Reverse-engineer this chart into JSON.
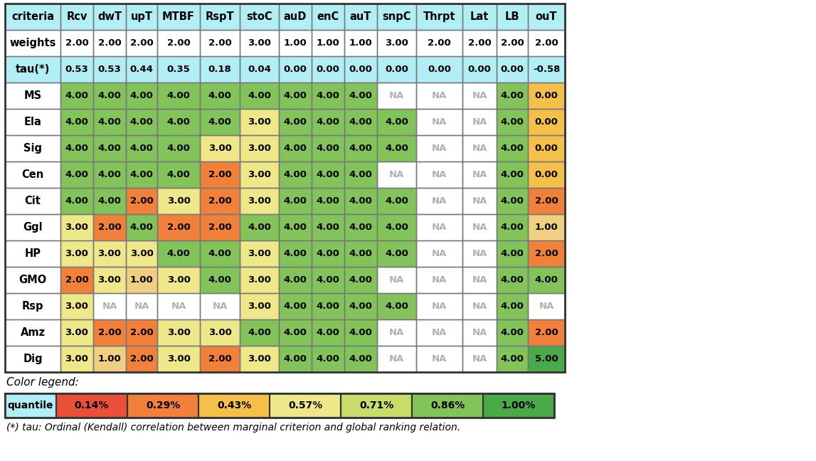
{
  "col_headers": [
    "criteria",
    "Rcv",
    "dwT",
    "upT",
    "MTBF",
    "RspT",
    "stoC",
    "auD",
    "enC",
    "auT",
    "snpC",
    "Thrpt",
    "Lat",
    "LB",
    "ouT"
  ],
  "row_headers": [
    "weights",
    "tau(*)",
    "MS",
    "Ela",
    "Sig",
    "Cen",
    "Cit",
    "Ggl",
    "HP",
    "GMO",
    "Rsp",
    "Amz",
    "Dig"
  ],
  "table_data": [
    [
      "2.00",
      "2.00",
      "2.00",
      "2.00",
      "2.00",
      "3.00",
      "1.00",
      "1.00",
      "1.00",
      "3.00",
      "2.00",
      "2.00",
      "2.00",
      "2.00"
    ],
    [
      "0.53",
      "0.53",
      "0.44",
      "0.35",
      "0.18",
      "0.04",
      "0.00",
      "0.00",
      "0.00",
      "0.00",
      "0.00",
      "0.00",
      "0.00",
      "-0.58"
    ],
    [
      "4.00",
      "4.00",
      "4.00",
      "4.00",
      "4.00",
      "4.00",
      "4.00",
      "4.00",
      "4.00",
      "NA",
      "NA",
      "NA",
      "4.00",
      "0.00"
    ],
    [
      "4.00",
      "4.00",
      "4.00",
      "4.00",
      "4.00",
      "3.00",
      "4.00",
      "4.00",
      "4.00",
      "4.00",
      "NA",
      "NA",
      "4.00",
      "0.00"
    ],
    [
      "4.00",
      "4.00",
      "4.00",
      "4.00",
      "3.00",
      "3.00",
      "4.00",
      "4.00",
      "4.00",
      "4.00",
      "NA",
      "NA",
      "4.00",
      "0.00"
    ],
    [
      "4.00",
      "4.00",
      "4.00",
      "4.00",
      "2.00",
      "3.00",
      "4.00",
      "4.00",
      "4.00",
      "NA",
      "NA",
      "NA",
      "4.00",
      "0.00"
    ],
    [
      "4.00",
      "4.00",
      "2.00",
      "3.00",
      "2.00",
      "3.00",
      "4.00",
      "4.00",
      "4.00",
      "4.00",
      "NA",
      "NA",
      "4.00",
      "2.00"
    ],
    [
      "3.00",
      "2.00",
      "4.00",
      "2.00",
      "2.00",
      "4.00",
      "4.00",
      "4.00",
      "4.00",
      "4.00",
      "NA",
      "NA",
      "4.00",
      "1.00"
    ],
    [
      "3.00",
      "3.00",
      "3.00",
      "4.00",
      "4.00",
      "3.00",
      "4.00",
      "4.00",
      "4.00",
      "4.00",
      "NA",
      "NA",
      "4.00",
      "2.00"
    ],
    [
      "2.00",
      "3.00",
      "1.00",
      "3.00",
      "4.00",
      "3.00",
      "4.00",
      "4.00",
      "4.00",
      "NA",
      "NA",
      "NA",
      "4.00",
      "4.00"
    ],
    [
      "3.00",
      "NA",
      "NA",
      "NA",
      "NA",
      "3.00",
      "4.00",
      "4.00",
      "4.00",
      "4.00",
      "NA",
      "NA",
      "4.00",
      "NA"
    ],
    [
      "3.00",
      "2.00",
      "2.00",
      "3.00",
      "3.00",
      "4.00",
      "4.00",
      "4.00",
      "4.00",
      "NA",
      "NA",
      "NA",
      "4.00",
      "2.00"
    ],
    [
      "3.00",
      "1.00",
      "2.00",
      "3.00",
      "2.00",
      "3.00",
      "4.00",
      "4.00",
      "4.00",
      "NA",
      "NA",
      "NA",
      "4.00",
      "5.00"
    ]
  ],
  "value_color_map": {
    "0.00": "#f5c04a",
    "1.00": "#f0d080",
    "2.00": "#f0803a",
    "3.00": "#eee88a",
    "4.00": "#82c45a",
    "5.00": "#4aaa4a"
  },
  "quantile_colors": [
    "#e8503a",
    "#f0803a",
    "#f5c04a",
    "#eee88a",
    "#c8dc6a",
    "#82c45a",
    "#4aaa4a"
  ],
  "quantile_labels": [
    "0.14%",
    "0.29%",
    "0.43%",
    "0.57%",
    "0.71%",
    "0.86%",
    "1.00%"
  ],
  "header_bg": "#b2eef5",
  "tau_bg": "#b2eef5",
  "na_bg": "#ffffff",
  "na_text_color": "#b0b0b0",
  "cell_border_color": "#777777",
  "outer_border_color": "#333333",
  "legend_bg": "#b2eef5",
  "footer_text": "(*) tau: Ordinal (Kendall) correlation between marginal criterion and global ranking relation.",
  "color_legend_label": "Color legend:"
}
